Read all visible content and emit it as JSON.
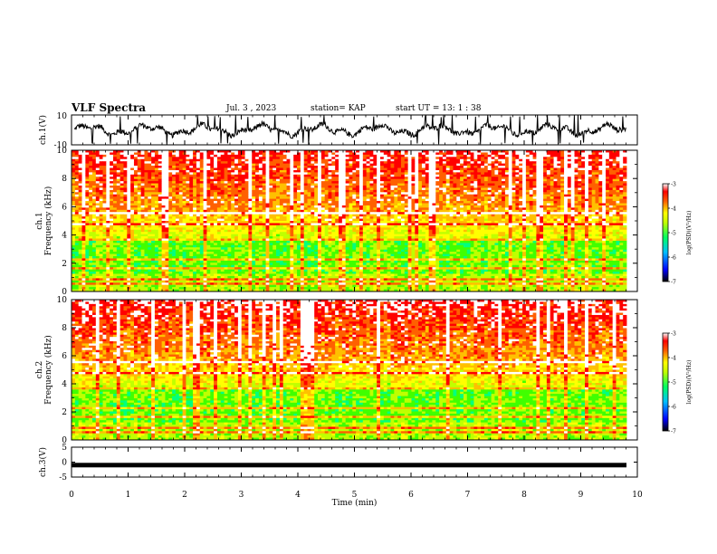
{
  "header": {
    "title": "VLF Spectra",
    "date": "Jul. 3 , 2023",
    "station": "station= KAP",
    "start": "start UT = 13: 1 : 38"
  },
  "chart_data": [
    {
      "type": "line",
      "panel": "ch1-waveform",
      "ylabel": "ch.1(V)",
      "ylim": [
        -10,
        10
      ],
      "yticks": [
        "10",
        "-10"
      ],
      "xlim": [
        0,
        10
      ],
      "series": [
        {
          "color": "#000000",
          "description_level": "noisy oscillation around 0 V, roughly -4 to 4 V with spikes reaching the limits"
        }
      ]
    },
    {
      "type": "heatmap",
      "panel": "ch1-spectrogram",
      "ylabel": "ch.1 Frequency (kHz)",
      "ylim": [
        0,
        10
      ],
      "yticks": [
        "0",
        "2",
        "4",
        "6",
        "8",
        "10"
      ],
      "xlim": [
        0,
        9.8
      ],
      "colorbar": {
        "label": "log(PSD)(V²/Hz)",
        "range": [
          -7,
          -3
        ],
        "ticks": [
          "-3",
          "-4",
          "-5",
          "-6",
          "-7"
        ]
      }
    },
    {
      "type": "heatmap",
      "panel": "ch2-spectrogram",
      "ylabel": "ch.2 Frequency (kHz)",
      "ylim": [
        0,
        10
      ],
      "yticks": [
        "0",
        "2",
        "4",
        "6",
        "8",
        "10"
      ],
      "xlim": [
        0,
        9.8
      ],
      "colorbar": {
        "label": "log(PSD)(V²/Hz)",
        "range": [
          -7,
          -3
        ],
        "ticks": [
          "-3",
          "-4",
          "-5",
          "-6",
          "-7"
        ]
      }
    },
    {
      "type": "line",
      "panel": "ch3-waveform",
      "ylabel": "ch.3(V)",
      "ylim": [
        -5,
        5
      ],
      "yticks": [
        "5",
        "0",
        "-5"
      ],
      "xlim": [
        0,
        10
      ],
      "series": [
        {
          "color": "#000000",
          "approx_level": -1
        }
      ]
    }
  ],
  "xaxis": {
    "label": "Time (min)",
    "ticks": [
      "0",
      "1",
      "2",
      "3",
      "4",
      "5",
      "6",
      "7",
      "8",
      "9",
      "10"
    ],
    "range": [
      0,
      10
    ]
  },
  "colors": {
    "colormap": [
      "#000080",
      "#0000ff",
      "#00c0ff",
      "#00ff80",
      "#40ff00",
      "#c0ff00",
      "#ffff00",
      "#ffc000",
      "#ff6000",
      "#ff0000",
      "#ffffff"
    ]
  }
}
